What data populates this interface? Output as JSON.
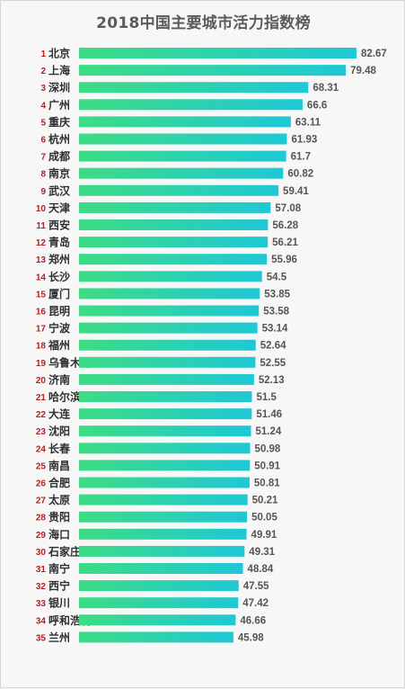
{
  "chart_data": {
    "type": "bar",
    "orientation": "horizontal",
    "title": "2018中国主要城市活力指数榜",
    "xlabel": "",
    "ylabel": "",
    "grid": false,
    "legend": "none",
    "xlim": [
      0,
      82.67
    ],
    "colors": {
      "bar_start": "#3ddc84",
      "bar_end": "#1ec8d6",
      "rank": "#b32222",
      "value": "#555555",
      "city": "#2f2f2f",
      "background": "#f7f7f7"
    },
    "rows": [
      {
        "rank": "1",
        "city": "北京",
        "value": 82.67,
        "label": "82.67"
      },
      {
        "rank": "2",
        "city": "上海",
        "value": 79.48,
        "label": "79.48"
      },
      {
        "rank": "3",
        "city": "深圳",
        "value": 68.31,
        "label": "68.31"
      },
      {
        "rank": "4",
        "city": "广州",
        "value": 66.6,
        "label": "66.6"
      },
      {
        "rank": "5",
        "city": "重庆",
        "value": 63.11,
        "label": "63.11"
      },
      {
        "rank": "6",
        "city": "杭州",
        "value": 61.93,
        "label": "61.93"
      },
      {
        "rank": "7",
        "city": "成都",
        "value": 61.7,
        "label": "61.7"
      },
      {
        "rank": "8",
        "city": "南京",
        "value": 60.82,
        "label": "60.82"
      },
      {
        "rank": "9",
        "city": "武汉",
        "value": 59.41,
        "label": "59.41"
      },
      {
        "rank": "10",
        "city": "天津",
        "value": 57.08,
        "label": "57.08"
      },
      {
        "rank": "11",
        "city": "西安",
        "value": 56.28,
        "label": "56.28"
      },
      {
        "rank": "12",
        "city": "青岛",
        "value": 56.21,
        "label": "56.21"
      },
      {
        "rank": "13",
        "city": "郑州",
        "value": 55.96,
        "label": "55.96"
      },
      {
        "rank": "14",
        "city": "长沙",
        "value": 54.5,
        "label": "54.5"
      },
      {
        "rank": "15",
        "city": "厦门",
        "value": 53.85,
        "label": "53.85"
      },
      {
        "rank": "16",
        "city": "昆明",
        "value": 53.58,
        "label": "53.58"
      },
      {
        "rank": "17",
        "city": "宁波",
        "value": 53.14,
        "label": "53.14"
      },
      {
        "rank": "18",
        "city": "福州",
        "value": 52.64,
        "label": "52.64"
      },
      {
        "rank": "19",
        "city": "乌鲁木齐",
        "value": 52.55,
        "label": "52.55"
      },
      {
        "rank": "20",
        "city": "济南",
        "value": 52.13,
        "label": "52.13"
      },
      {
        "rank": "21",
        "city": "哈尔滨",
        "value": 51.5,
        "label": "51.5"
      },
      {
        "rank": "22",
        "city": "大连",
        "value": 51.46,
        "label": "51.46"
      },
      {
        "rank": "23",
        "city": "沈阳",
        "value": 51.24,
        "label": "51.24"
      },
      {
        "rank": "24",
        "city": "长春",
        "value": 50.98,
        "label": "50.98"
      },
      {
        "rank": "25",
        "city": "南昌",
        "value": 50.91,
        "label": "50.91"
      },
      {
        "rank": "26",
        "city": "合肥",
        "value": 50.81,
        "label": "50.81"
      },
      {
        "rank": "27",
        "city": "太原",
        "value": 50.21,
        "label": "50.21"
      },
      {
        "rank": "28",
        "city": "贵阳",
        "value": 50.05,
        "label": "50.05"
      },
      {
        "rank": "29",
        "city": "海口",
        "value": 49.91,
        "label": "49.91"
      },
      {
        "rank": "30",
        "city": "石家庄",
        "value": 49.31,
        "label": "49.31"
      },
      {
        "rank": "31",
        "city": "南宁",
        "value": 48.84,
        "label": "48.84"
      },
      {
        "rank": "32",
        "city": "西宁",
        "value": 47.55,
        "label": "47.55"
      },
      {
        "rank": "33",
        "city": "银川",
        "value": 47.42,
        "label": "47.42"
      },
      {
        "rank": "34",
        "city": "呼和浩特",
        "value": 46.66,
        "label": "46.66"
      },
      {
        "rank": "35",
        "city": "兰州",
        "value": 45.98,
        "label": "45.98"
      }
    ]
  }
}
